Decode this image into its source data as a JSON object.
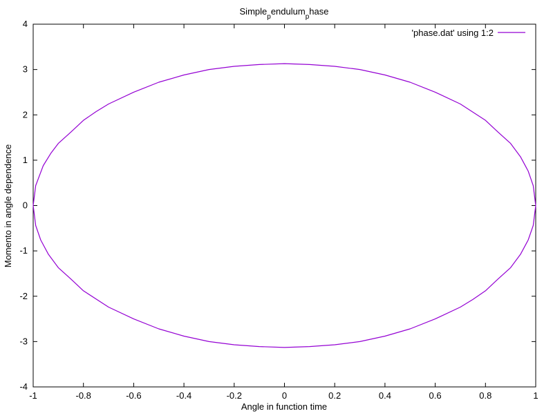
{
  "chart_data": {
    "type": "line",
    "title_parts": [
      {
        "text": "Simple",
        "sub": false
      },
      {
        "text": "p",
        "sub": true
      },
      {
        "text": "endulum",
        "sub": false
      },
      {
        "text": "p",
        "sub": true
      },
      {
        "text": "hase",
        "sub": false
      }
    ],
    "xlabel": "Angle in function time",
    "ylabel": "Momento in angle dependence",
    "xlim": [
      -1,
      1
    ],
    "ylim": [
      -4,
      4
    ],
    "xticks": [
      -1,
      -0.8,
      -0.6,
      -0.4,
      -0.2,
      0,
      0.2,
      0.4,
      0.6,
      0.8,
      1
    ],
    "yticks": [
      -4,
      -3,
      -2,
      -1,
      0,
      1,
      2,
      3,
      4
    ],
    "grid": false,
    "legend_position": "top-right",
    "series": [
      {
        "name": "'phase.dat' using 1:2",
        "color": "#9400d3",
        "x": [
          -1.0,
          -0.99,
          -0.96,
          -0.93,
          -0.9,
          -0.85,
          -0.8,
          -0.75,
          -0.7,
          -0.6,
          -0.5,
          -0.4,
          -0.3,
          -0.2,
          -0.1,
          0.0,
          0.1,
          0.2,
          0.3,
          0.4,
          0.5,
          0.6,
          0.7,
          0.8,
          0.85,
          0.9,
          0.94,
          0.97,
          0.99,
          1.0,
          0.99,
          0.97,
          0.94,
          0.9,
          0.85,
          0.8,
          0.75,
          0.7,
          0.6,
          0.5,
          0.4,
          0.3,
          0.2,
          0.1,
          0.0,
          -0.1,
          -0.2,
          -0.3,
          -0.4,
          -0.5,
          -0.6,
          -0.7,
          -0.8,
          -0.85,
          -0.9,
          -0.94,
          -0.97,
          -0.99,
          -1.0
        ],
        "y": [
          0.0,
          0.44,
          0.88,
          1.15,
          1.37,
          1.62,
          1.88,
          2.07,
          2.24,
          2.5,
          2.72,
          2.88,
          3.0,
          3.07,
          3.11,
          3.13,
          3.11,
          3.07,
          3.0,
          2.88,
          2.72,
          2.5,
          2.24,
          1.88,
          1.62,
          1.37,
          1.07,
          0.76,
          0.44,
          0.0,
          -0.44,
          -0.76,
          -1.07,
          -1.37,
          -1.62,
          -1.88,
          -2.07,
          -2.24,
          -2.5,
          -2.72,
          -2.88,
          -3.0,
          -3.07,
          -3.11,
          -3.13,
          -3.11,
          -3.07,
          -3.0,
          -2.88,
          -2.72,
          -2.5,
          -2.24,
          -1.88,
          -1.62,
          -1.37,
          -1.07,
          -0.76,
          -0.44,
          0.0
        ]
      }
    ]
  }
}
